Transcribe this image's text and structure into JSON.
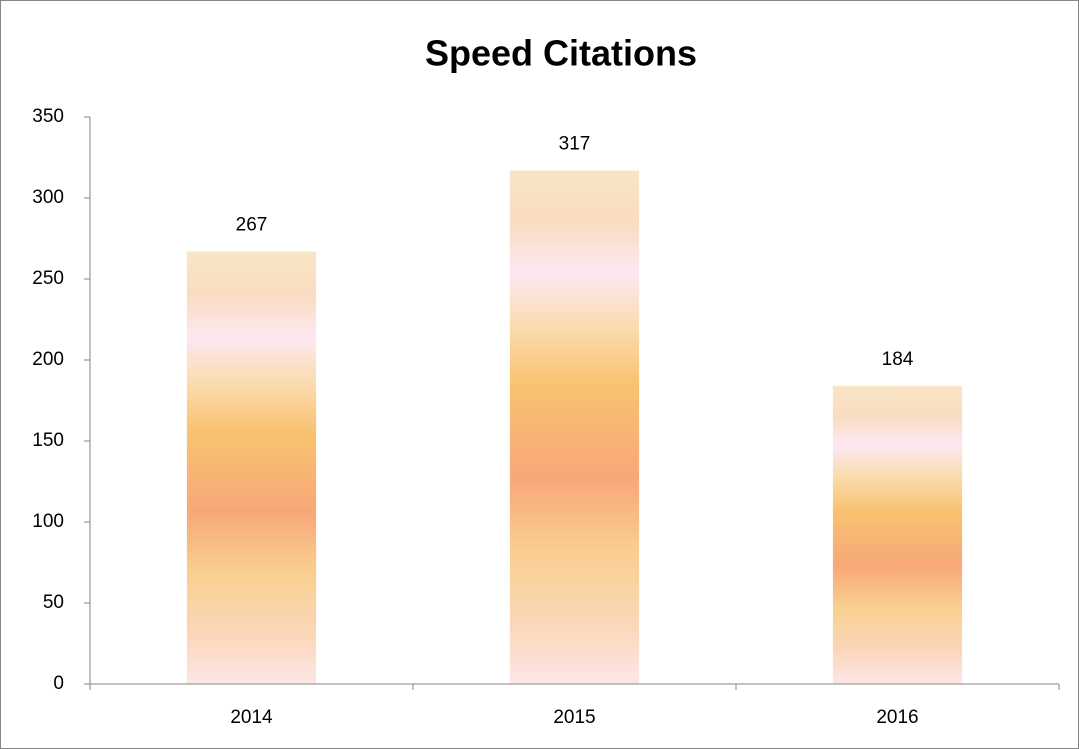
{
  "chart_data": {
    "type": "bar",
    "title": "Speed Citations",
    "categories": [
      "2014",
      "2015",
      "2016"
    ],
    "values": [
      267,
      317,
      184
    ],
    "ylim": [
      0,
      350
    ],
    "yticks": [
      0,
      50,
      100,
      150,
      200,
      250,
      300,
      350
    ]
  }
}
